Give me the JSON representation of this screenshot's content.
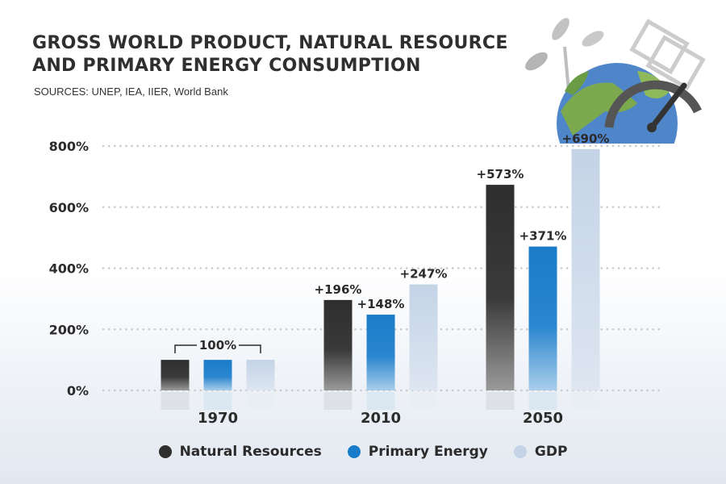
{
  "title_line1": "GROSS WORLD PRODUCT, NATURAL RESOURCE",
  "title_line2": "AND PRIMARY ENERGY CONSUMPTION",
  "sources": "SOURCES: UNEP, IEA, IIER, World Bank",
  "colors": {
    "natural_resources": "#2e2e2e",
    "primary_energy": "#1a7cc9",
    "gdp": "#c4d3e6"
  },
  "chart_data": {
    "type": "bar",
    "categories": [
      "1970",
      "2010",
      "2050"
    ],
    "series": [
      {
        "name": "Natural Resources",
        "values": [
          100,
          296,
          673
        ],
        "labels": [
          "",
          "+196%",
          "+573%"
        ]
      },
      {
        "name": "Primary Energy",
        "values": [
          100,
          248,
          471
        ],
        "labels": [
          "",
          "+148%",
          "+371%"
        ]
      },
      {
        "name": "GDP",
        "values": [
          100,
          347,
          790
        ],
        "labels": [
          "",
          "+247%",
          "+690%"
        ]
      }
    ],
    "group_annotation": "100%",
    "y_ticks": [
      "0%",
      "200%",
      "400%",
      "600%",
      "800%"
    ],
    "y_tick_values": [
      0,
      200,
      400,
      600,
      800
    ],
    "ylim": [
      0,
      800
    ],
    "grid": true,
    "legend_position": "bottom-center"
  },
  "legend": [
    {
      "label": "Natural Resources",
      "color": "#2e2e2e"
    },
    {
      "label": "Primary Energy",
      "color": "#1a7cc9"
    },
    {
      "label": "GDP",
      "color": "#c4d3e6"
    }
  ]
}
